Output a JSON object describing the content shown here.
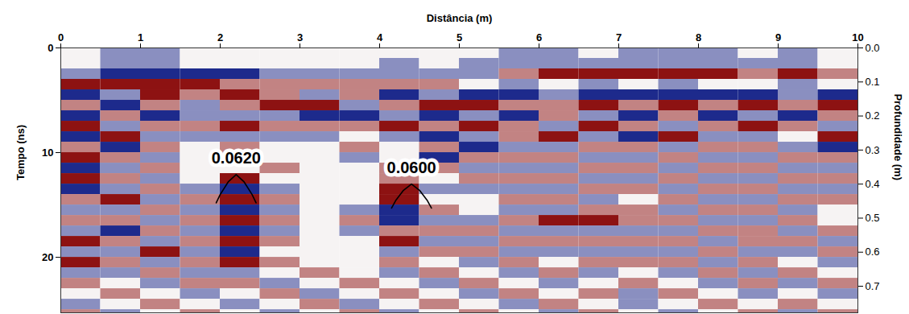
{
  "chart_data": {
    "type": "heatmap",
    "xlabel": "Distância (m)",
    "ylabel": "Tempo (ns)",
    "y2label": "Profundidade (m)",
    "xlim": [
      0,
      10
    ],
    "xticks": [
      0,
      1,
      2,
      3,
      4,
      5,
      6,
      7,
      8,
      9,
      10
    ],
    "ylim": [
      0,
      25.3
    ],
    "yticks": [
      0,
      10,
      20
    ],
    "y2lim": [
      0,
      0.778
    ],
    "y2ticks": [
      {
        "value": 0,
        "label": "0.0"
      },
      0.1,
      0.2,
      0.3,
      0.4,
      0.5,
      0.6,
      0.7
    ],
    "x": [
      0.25,
      0.75,
      1.25,
      1.75,
      2.25,
      2.75,
      3.25,
      3.75,
      4.25,
      4.75,
      5.25,
      5.75,
      6.25,
      6.75,
      7.25,
      7.75,
      8.25,
      8.75,
      9.25,
      9.75
    ],
    "y": [
      0.5,
      1.5,
      2.5,
      3.5,
      4.5,
      5.5,
      6.5,
      7.5,
      8.5,
      9.5,
      10.5,
      11.5,
      12.5,
      13.5,
      14.5,
      15.5,
      16.5,
      17.5,
      18.5,
      19.5,
      20.5,
      21.5,
      22.5,
      23.5,
      24.5,
      25.5
    ],
    "values": [
      [
        0,
        -1,
        -1,
        0,
        0,
        0,
        0,
        0,
        0,
        0,
        0,
        -1,
        -1,
        0,
        -1,
        -1,
        -1,
        0,
        -1,
        0
      ],
      [
        0,
        -1,
        -1,
        0,
        0,
        0,
        0,
        0,
        -1,
        0,
        -1,
        -1,
        -1,
        -1,
        -1,
        -1,
        -1,
        -1,
        -1,
        0
      ],
      [
        -1,
        -2,
        -2,
        -2,
        -2,
        -1,
        -1,
        -1,
        -1,
        -1,
        -1,
        1,
        2,
        2,
        2,
        2,
        2,
        1,
        2,
        1
      ],
      [
        2,
        2,
        2,
        2,
        1,
        1,
        1,
        1,
        1,
        1,
        0,
        -1,
        0,
        -1,
        0,
        -1,
        0,
        0,
        -1,
        0
      ],
      [
        -2,
        -1,
        2,
        1,
        2,
        1,
        -1,
        1,
        -2,
        -1,
        -2,
        -2,
        -1,
        -2,
        -2,
        -2,
        -2,
        -2,
        -1,
        -2
      ],
      [
        1,
        -2,
        1,
        -1,
        1,
        2,
        2,
        -1,
        1,
        2,
        2,
        1,
        1,
        2,
        1,
        2,
        1,
        2,
        1,
        2
      ],
      [
        -2,
        1,
        -2,
        -1,
        -1,
        -1,
        -2,
        -2,
        -1,
        -2,
        -1,
        -2,
        1,
        -1,
        -2,
        1,
        -2,
        -1,
        -2,
        1
      ],
      [
        2,
        -1,
        1,
        1,
        2,
        1,
        1,
        1,
        2,
        1,
        2,
        1,
        -1,
        2,
        1,
        -1,
        1,
        2,
        1,
        -1
      ],
      [
        -2,
        2,
        -1,
        -1,
        -1,
        -1,
        -1,
        0,
        -1,
        -2,
        -1,
        1,
        2,
        -1,
        -2,
        2,
        -1,
        -1,
        0,
        2
      ],
      [
        1,
        -2,
        1,
        0,
        1,
        0,
        0,
        1,
        0,
        1,
        -2,
        -1,
        -1,
        1,
        1,
        -1,
        1,
        1,
        -1,
        -2
      ],
      [
        2,
        1,
        -1,
        0,
        -1,
        0,
        0,
        -1,
        0,
        -2,
        1,
        1,
        1,
        -1,
        -1,
        1,
        -1,
        -1,
        1,
        1
      ],
      [
        -2,
        -1,
        1,
        0,
        0,
        1,
        0,
        0,
        1,
        1,
        -1,
        -1,
        -1,
        1,
        1,
        -1,
        1,
        1,
        -1,
        -1
      ],
      [
        2,
        1,
        -1,
        0,
        2,
        0,
        0,
        0,
        1,
        0,
        1,
        1,
        1,
        -1,
        -1,
        1,
        -1,
        -1,
        1,
        1
      ],
      [
        -2,
        -1,
        1,
        -1,
        -2,
        -1,
        0,
        0,
        2,
        -1,
        -1,
        -1,
        -1,
        1,
        1,
        -1,
        1,
        1,
        -1,
        -1
      ],
      [
        1,
        2,
        -1,
        1,
        2,
        1,
        0,
        0,
        2,
        0,
        0,
        1,
        1,
        -1,
        0,
        1,
        -1,
        -1,
        1,
        1
      ],
      [
        -1,
        -1,
        1,
        -1,
        -2,
        -1,
        0,
        -1,
        -2,
        1,
        0,
        -1,
        -1,
        1,
        1,
        -1,
        1,
        1,
        -1,
        0
      ],
      [
        1,
        1,
        -1,
        1,
        2,
        1,
        0,
        1,
        -2,
        -1,
        -1,
        1,
        2,
        2,
        1,
        1,
        -1,
        -1,
        1,
        0
      ],
      [
        -1,
        -2,
        1,
        -1,
        -2,
        -1,
        0,
        -1,
        1,
        1,
        1,
        -1,
        -1,
        -1,
        -1,
        -1,
        1,
        1,
        -1,
        1
      ],
      [
        2,
        1,
        -1,
        1,
        2,
        1,
        0,
        0,
        2,
        -1,
        -1,
        1,
        1,
        1,
        1,
        1,
        -1,
        1,
        1,
        -1
      ],
      [
        -1,
        -1,
        2,
        -1,
        -2,
        0,
        0,
        0,
        -1,
        1,
        1,
        -1,
        -1,
        -1,
        -1,
        -1,
        1,
        -1,
        -1,
        1
      ],
      [
        2,
        1,
        -1,
        1,
        2,
        1,
        0,
        0,
        1,
        0,
        -1,
        1,
        0,
        1,
        1,
        1,
        -1,
        1,
        0,
        -1
      ],
      [
        -1,
        -1,
        1,
        -1,
        -1,
        0,
        1,
        0,
        -1,
        1,
        0,
        -1,
        1,
        -1,
        0,
        -1,
        1,
        -1,
        1,
        0
      ],
      [
        1,
        0,
        -1,
        1,
        1,
        -1,
        0,
        1,
        0,
        -1,
        1,
        0,
        -1,
        0,
        1,
        0,
        -1,
        1,
        -1,
        1
      ],
      [
        0,
        1,
        0,
        -1,
        0,
        1,
        -1,
        0,
        1,
        0,
        -1,
        1,
        0,
        1,
        -1,
        1,
        0,
        -1,
        0,
        -1
      ],
      [
        -1,
        0,
        1,
        0,
        -1,
        0,
        1,
        -1,
        0,
        1,
        0,
        -1,
        1,
        0,
        -1,
        0,
        1,
        0,
        1,
        0
      ],
      [
        1,
        -1,
        0,
        1,
        0,
        -1,
        0,
        1,
        -1,
        0,
        1,
        0,
        -1,
        1,
        0,
        -1,
        0,
        1,
        -1,
        1
      ]
    ],
    "series": [
      {
        "name": "0.0620",
        "type": "line",
        "color": "#000000",
        "x": [
          1.95,
          2.0,
          2.1,
          2.2,
          2.3,
          2.4,
          2.45
        ],
        "values": [
          14.8,
          14.0,
          12.8,
          12.1,
          12.8,
          14.0,
          14.8
        ]
      },
      {
        "name": "0.0600",
        "type": "line",
        "color": "#000000",
        "x": [
          4.15,
          4.2,
          4.3,
          4.4,
          4.5,
          4.6,
          4.65
        ],
        "values": [
          15.3,
          14.6,
          13.6,
          13.0,
          13.6,
          14.6,
          15.3
        ]
      }
    ]
  }
}
